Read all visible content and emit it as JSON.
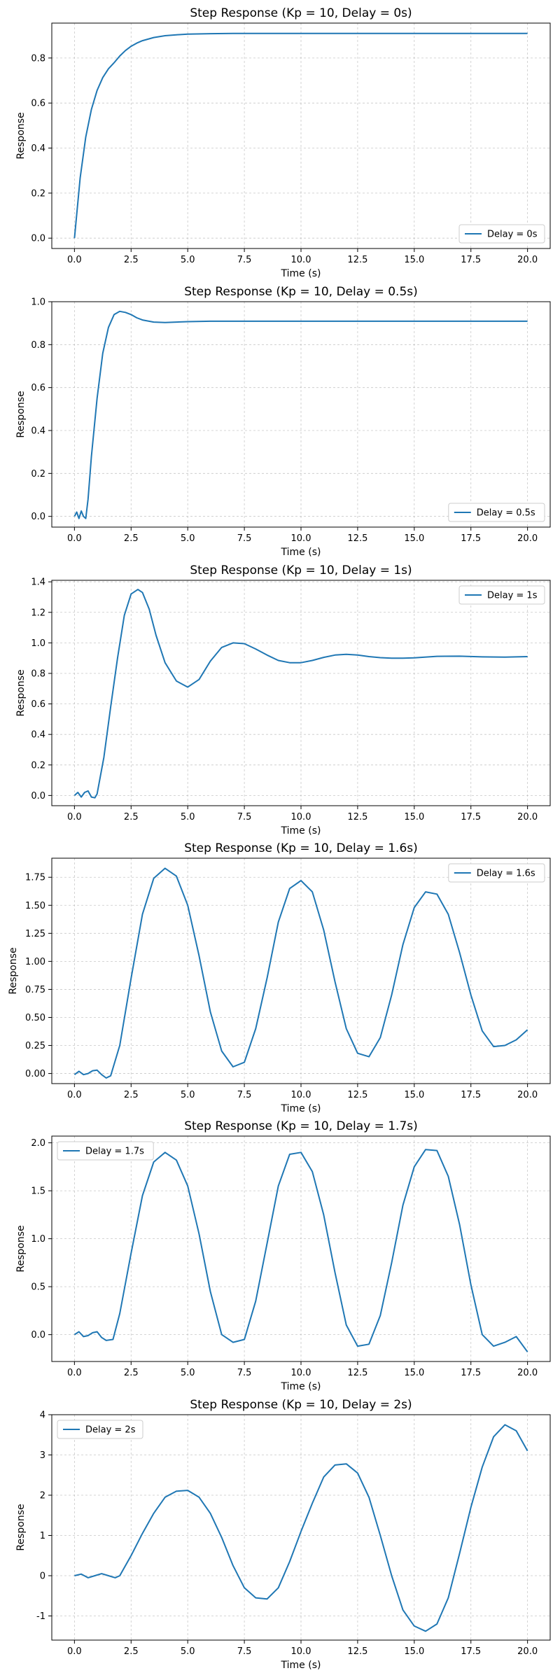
{
  "chart_data": [
    {
      "type": "line",
      "title": "Step Response (Kp = 10, Delay = 0s)",
      "xlabel": "Time (s)",
      "ylabel": "Response",
      "xlim": [
        -1,
        21
      ],
      "ylim": [
        -0.046,
        0.955
      ],
      "xticks": [
        0.0,
        2.5,
        5.0,
        7.5,
        10.0,
        12.5,
        15.0,
        17.5,
        20.0
      ],
      "yticks": [
        0.0,
        0.2,
        0.4,
        0.6,
        0.8
      ],
      "yticks_decimals": 1,
      "grid": true,
      "legend": "lower right",
      "series": [
        {
          "name": "Delay = 0s",
          "color": "#1f77b4",
          "x": [
            0,
            0.25,
            0.5,
            0.75,
            1.0,
            1.25,
            1.5,
            1.75,
            2.0,
            2.25,
            2.5,
            2.75,
            3.0,
            3.5,
            4.0,
            4.5,
            5.0,
            6.0,
            7.0,
            8.0,
            10.0,
            12.0,
            15.0,
            20.0
          ],
          "y": [
            0.0,
            0.267,
            0.449,
            0.572,
            0.656,
            0.713,
            0.752,
            0.779,
            0.809,
            0.833,
            0.852,
            0.866,
            0.877,
            0.891,
            0.899,
            0.903,
            0.906,
            0.908,
            0.909,
            0.909,
            0.909,
            0.909,
            0.909,
            0.909
          ]
        }
      ]
    },
    {
      "type": "line",
      "title": "Step Response (Kp = 10, Delay = 0.5s)",
      "xlabel": "Time (s)",
      "ylabel": "Response",
      "xlim": [
        -1,
        21
      ],
      "ylim": [
        -0.05,
        1.0
      ],
      "xticks": [
        0.0,
        2.5,
        5.0,
        7.5,
        10.0,
        12.5,
        15.0,
        17.5,
        20.0
      ],
      "yticks": [
        0.0,
        0.2,
        0.4,
        0.6,
        0.8,
        1.0
      ],
      "yticks_decimals": 1,
      "grid": true,
      "legend": "lower right",
      "series": [
        {
          "name": "Delay = 0.5s",
          "color": "#1f77b4",
          "x": [
            0,
            0.1,
            0.2,
            0.3,
            0.4,
            0.5,
            0.6,
            0.75,
            1.0,
            1.25,
            1.5,
            1.75,
            2.0,
            2.25,
            2.5,
            2.75,
            3.0,
            3.5,
            4.0,
            4.5,
            5.0,
            6.0,
            8.0,
            10.0,
            15.0,
            20.0
          ],
          "y": [
            0.0,
            0.02,
            -0.01,
            0.025,
            0.0,
            -0.01,
            0.08,
            0.28,
            0.55,
            0.76,
            0.88,
            0.94,
            0.955,
            0.95,
            0.94,
            0.925,
            0.915,
            0.905,
            0.903,
            0.905,
            0.907,
            0.909,
            0.909,
            0.909,
            0.909,
            0.909
          ]
        }
      ]
    },
    {
      "type": "line",
      "title": "Step Response (Kp = 10, Delay = 1s)",
      "xlabel": "Time (s)",
      "ylabel": "Response",
      "xlim": [
        -1,
        21
      ],
      "ylim": [
        -0.067,
        1.41
      ],
      "xticks": [
        0.0,
        2.5,
        5.0,
        7.5,
        10.0,
        12.5,
        15.0,
        17.5,
        20.0
      ],
      "yticks": [
        0.0,
        0.2,
        0.4,
        0.6,
        0.8,
        1.0,
        1.2,
        1.4
      ],
      "yticks_decimals": 1,
      "grid": true,
      "legend": "upper right",
      "series": [
        {
          "name": "Delay = 1s",
          "color": "#1f77b4",
          "x": [
            0,
            0.15,
            0.3,
            0.45,
            0.6,
            0.75,
            0.9,
            1.0,
            1.3,
            1.6,
            1.9,
            2.2,
            2.5,
            2.8,
            3.0,
            3.3,
            3.6,
            4.0,
            4.5,
            5.0,
            5.5,
            6.0,
            6.5,
            7.0,
            7.5,
            8.0,
            8.5,
            9.0,
            9.5,
            10.0,
            10.5,
            11.0,
            11.5,
            12.0,
            12.5,
            13.0,
            13.5,
            14.0,
            14.5,
            15.0,
            16.0,
            17.0,
            18.0,
            19.0,
            20.0
          ],
          "y": [
            0.0,
            0.02,
            -0.01,
            0.02,
            0.03,
            -0.01,
            -0.015,
            0.01,
            0.25,
            0.58,
            0.9,
            1.18,
            1.32,
            1.35,
            1.33,
            1.22,
            1.05,
            0.87,
            0.75,
            0.71,
            0.76,
            0.88,
            0.97,
            1.0,
            0.995,
            0.96,
            0.92,
            0.885,
            0.87,
            0.87,
            0.885,
            0.905,
            0.92,
            0.925,
            0.92,
            0.91,
            0.903,
            0.9,
            0.9,
            0.902,
            0.912,
            0.913,
            0.908,
            0.907,
            0.91
          ]
        }
      ]
    },
    {
      "type": "line",
      "title": "Step Response (Kp = 10, Delay = 1.6s)",
      "xlabel": "Time (s)",
      "ylabel": "Response",
      "xlim": [
        -1,
        21
      ],
      "ylim": [
        -0.09,
        1.92
      ],
      "xticks": [
        0.0,
        2.5,
        5.0,
        7.5,
        10.0,
        12.5,
        15.0,
        17.5,
        20.0
      ],
      "yticks": [
        0.0,
        0.25,
        0.5,
        0.75,
        1.0,
        1.25,
        1.5,
        1.75
      ],
      "yticks_decimals": 2,
      "grid": true,
      "legend": "upper right",
      "series": [
        {
          "name": "Delay = 1.6s",
          "color": "#1f77b4",
          "x": [
            0,
            0.2,
            0.4,
            0.6,
            0.8,
            1.0,
            1.2,
            1.4,
            1.6,
            2.0,
            2.5,
            3.0,
            3.5,
            4.0,
            4.5,
            5.0,
            5.5,
            6.0,
            6.5,
            7.0,
            7.5,
            8.0,
            8.5,
            9.0,
            9.5,
            10.0,
            10.5,
            11.0,
            11.5,
            12.0,
            12.5,
            13.0,
            13.5,
            14.0,
            14.5,
            15.0,
            15.5,
            16.0,
            16.5,
            17.0,
            17.5,
            18.0,
            18.5,
            19.0,
            19.5,
            20.0
          ],
          "y": [
            -0.01,
            0.02,
            -0.01,
            0.0,
            0.025,
            0.03,
            -0.01,
            -0.04,
            -0.02,
            0.25,
            0.85,
            1.42,
            1.74,
            1.83,
            1.76,
            1.5,
            1.05,
            0.55,
            0.2,
            0.06,
            0.1,
            0.4,
            0.85,
            1.35,
            1.65,
            1.72,
            1.62,
            1.28,
            0.82,
            0.4,
            0.18,
            0.15,
            0.32,
            0.7,
            1.15,
            1.48,
            1.62,
            1.6,
            1.42,
            1.08,
            0.7,
            0.38,
            0.24,
            0.25,
            0.3,
            0.39
          ]
        }
      ]
    },
    {
      "type": "line",
      "title": "Step Response (Kp = 10, Delay = 1.7s)",
      "xlabel": "Time (s)",
      "ylabel": "Response",
      "xlim": [
        -1,
        21
      ],
      "ylim": [
        -0.28,
        2.07
      ],
      "xticks": [
        0.0,
        2.5,
        5.0,
        7.5,
        10.0,
        12.5,
        15.0,
        17.5,
        20.0
      ],
      "yticks": [
        0.0,
        0.5,
        1.0,
        1.5,
        2.0
      ],
      "yticks_decimals": 1,
      "grid": true,
      "legend": "upper left",
      "series": [
        {
          "name": "Delay = 1.7s",
          "color": "#1f77b4",
          "x": [
            0,
            0.2,
            0.4,
            0.6,
            0.8,
            1.0,
            1.2,
            1.4,
            1.7,
            2.0,
            2.5,
            3.0,
            3.5,
            4.0,
            4.5,
            5.0,
            5.5,
            6.0,
            6.5,
            7.0,
            7.5,
            8.0,
            8.5,
            9.0,
            9.5,
            10.0,
            10.5,
            11.0,
            11.5,
            12.0,
            12.5,
            13.0,
            13.5,
            14.0,
            14.5,
            15.0,
            15.5,
            16.0,
            16.5,
            17.0,
            17.5,
            18.0,
            18.5,
            19.0,
            19.5,
            20.0
          ],
          "y": [
            0.0,
            0.03,
            -0.02,
            -0.01,
            0.02,
            0.03,
            -0.03,
            -0.06,
            -0.05,
            0.22,
            0.85,
            1.45,
            1.8,
            1.9,
            1.82,
            1.55,
            1.05,
            0.45,
            0.0,
            -0.08,
            -0.05,
            0.35,
            0.95,
            1.55,
            1.88,
            1.9,
            1.7,
            1.25,
            0.65,
            0.1,
            -0.12,
            -0.1,
            0.2,
            0.75,
            1.35,
            1.75,
            1.93,
            1.92,
            1.65,
            1.15,
            0.52,
            0.0,
            -0.12,
            -0.08,
            -0.02,
            -0.18
          ]
        }
      ]
    },
    {
      "type": "line",
      "title": "Step Response (Kp = 10, Delay = 2s)",
      "xlabel": "Time (s)",
      "ylabel": "Response",
      "xlim": [
        -1,
        21
      ],
      "ylim": [
        -1.6,
        4.0
      ],
      "xticks": [
        0.0,
        2.5,
        5.0,
        7.5,
        10.0,
        12.5,
        15.0,
        17.5,
        20.0
      ],
      "yticks": [
        -1,
        0,
        1,
        2,
        3,
        4
      ],
      "yticks_decimals": 0,
      "grid": true,
      "legend": "upper left",
      "series": [
        {
          "name": "Delay = 2s",
          "color": "#1f77b4",
          "x": [
            0,
            0.3,
            0.6,
            0.9,
            1.2,
            1.5,
            1.8,
            2.0,
            2.5,
            3.0,
            3.5,
            4.0,
            4.5,
            5.0,
            5.5,
            6.0,
            6.5,
            7.0,
            7.5,
            8.0,
            8.5,
            9.0,
            9.5,
            10.0,
            10.5,
            11.0,
            11.5,
            12.0,
            12.5,
            13.0,
            13.5,
            14.0,
            14.5,
            15.0,
            15.5,
            16.0,
            16.5,
            17.0,
            17.5,
            18.0,
            18.5,
            19.0,
            19.5,
            20.0
          ],
          "y": [
            0.0,
            0.04,
            -0.05,
            0.0,
            0.05,
            0.0,
            -0.05,
            0.0,
            0.5,
            1.05,
            1.55,
            1.95,
            2.1,
            2.12,
            1.95,
            1.55,
            0.95,
            0.25,
            -0.3,
            -0.55,
            -0.58,
            -0.3,
            0.35,
            1.1,
            1.8,
            2.45,
            2.75,
            2.78,
            2.55,
            1.95,
            1.0,
            0.0,
            -0.85,
            -1.25,
            -1.38,
            -1.2,
            -0.55,
            0.55,
            1.7,
            2.7,
            3.45,
            3.75,
            3.6,
            3.1
          ]
        }
      ]
    }
  ]
}
